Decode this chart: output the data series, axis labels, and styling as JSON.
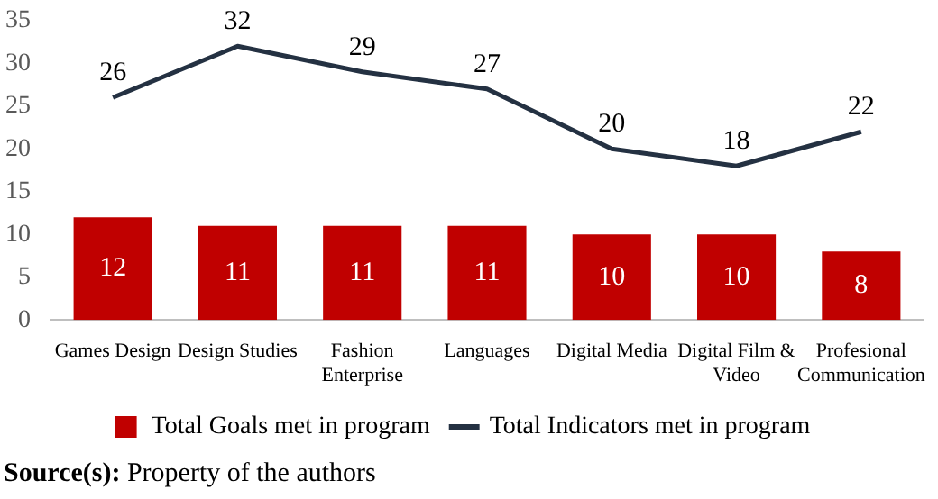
{
  "chart_data": {
    "type": "bar",
    "categories": [
      "Games Design",
      "Design Studies",
      "Fashion Enterprise",
      "Languages",
      "Digital Media",
      "Digital Film & Video",
      "Profesional Communication"
    ],
    "series": [
      {
        "name": "Total Goals met in program",
        "color": "#c00000",
        "values": [
          12,
          11,
          11,
          11,
          10,
          10,
          8
        ]
      },
      {
        "name": "Total Indicators met in program",
        "type": "line",
        "color": "#243142",
        "values": [
          26,
          32,
          29,
          27,
          20,
          18,
          22
        ]
      }
    ],
    "ylim": [
      0,
      35
    ],
    "yticks": [
      0,
      5,
      10,
      15,
      20,
      25,
      30,
      35
    ],
    "grid": false,
    "legend": "bottom",
    "marker": "none",
    "line_style": "solid",
    "data_labels": true,
    "annotations": [
      "Source(s): Property of the authors"
    ]
  }
}
